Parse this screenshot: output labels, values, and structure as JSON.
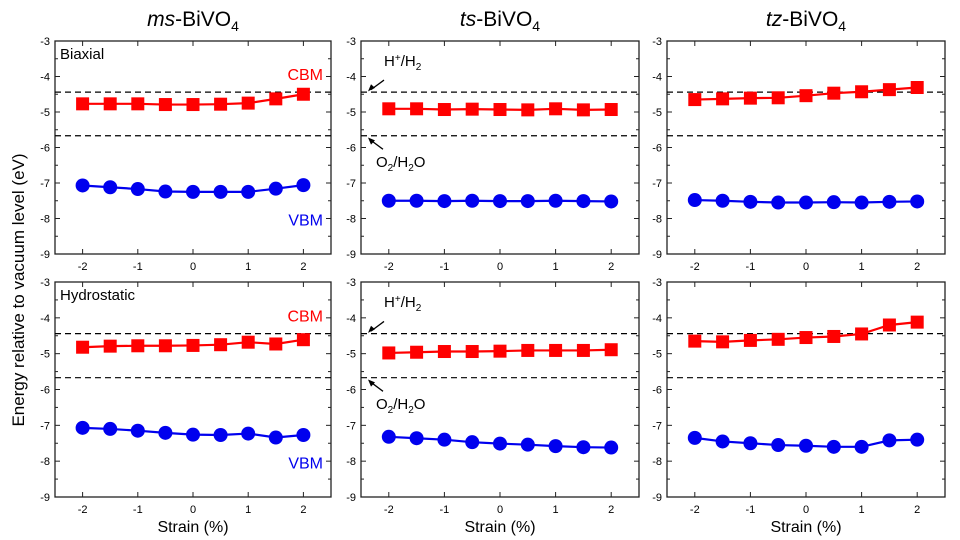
{
  "ylabel": "Energy relative to vacuum level (eV)",
  "colors": {
    "cbm": "#ff0000",
    "vbm": "#0000ee",
    "reference": "#000000"
  },
  "column_titles": [
    {
      "prefix": "ms",
      "base": "-BiVO",
      "sub": "4"
    },
    {
      "prefix": "ts",
      "base": "-BiVO",
      "sub": "4"
    },
    {
      "prefix": "tz",
      "base": "-BiVO",
      "sub": "4"
    }
  ],
  "row_labels": [
    "Biaxial",
    "Hydrostatic"
  ],
  "reference_labels": {
    "h": {
      "main": "H",
      "sup": "+",
      "rest": "/H",
      "sub": "2"
    },
    "o": {
      "main": "O",
      "sub1": "2",
      "rest": "/H",
      "sub2": "2",
      "end": "O"
    }
  },
  "chart_data": [
    {
      "type": "line",
      "panel": "ms-BiVO4 Biaxial",
      "xlabel": "",
      "ylabel": "Energy relative to vacuum level (eV)",
      "xlim": [
        -2.5,
        2.5
      ],
      "ylim": [
        -9,
        -3
      ],
      "xticks": [
        -2,
        -1,
        0,
        1,
        2
      ],
      "yticks": [
        -3,
        -4,
        -5,
        -6,
        -7,
        -8,
        -9
      ],
      "reference_lines": [
        -4.44,
        -5.67
      ],
      "x": [
        -2,
        -1.5,
        -1,
        -0.5,
        0,
        0.5,
        1,
        1.5,
        2
      ],
      "series": [
        {
          "name": "CBM",
          "marker": "square",
          "values": [
            -4.77,
            -4.77,
            -4.77,
            -4.79,
            -4.79,
            -4.78,
            -4.75,
            -4.63,
            -4.5
          ]
        },
        {
          "name": "VBM",
          "marker": "circle",
          "values": [
            -7.07,
            -7.12,
            -7.17,
            -7.24,
            -7.25,
            -7.25,
            -7.25,
            -7.16,
            -7.06
          ]
        }
      ]
    },
    {
      "type": "line",
      "panel": "ts-BiVO4 Biaxial",
      "xlabel": "",
      "xlim": [
        -2.5,
        2.5
      ],
      "ylim": [
        -9,
        -3
      ],
      "xticks": [
        -2,
        -1,
        0,
        1,
        2
      ],
      "yticks": [
        -3,
        -4,
        -5,
        -6,
        -7,
        -8,
        -9
      ],
      "reference_lines": [
        -4.44,
        -5.67
      ],
      "x": [
        -2,
        -1.5,
        -1,
        -0.5,
        0,
        0.5,
        1,
        1.5,
        2
      ],
      "series": [
        {
          "marker": "square",
          "values": [
            -4.91,
            -4.91,
            -4.93,
            -4.92,
            -4.93,
            -4.94,
            -4.91,
            -4.94,
            -4.93
          ]
        },
        {
          "marker": "circle",
          "values": [
            -7.5,
            -7.5,
            -7.51,
            -7.5,
            -7.51,
            -7.51,
            -7.5,
            -7.51,
            -7.52
          ]
        }
      ]
    },
    {
      "type": "line",
      "panel": "tz-BiVO4 Biaxial",
      "xlabel": "",
      "xlim": [
        -2.5,
        2.5
      ],
      "ylim": [
        -9,
        -3
      ],
      "xticks": [
        -2,
        -1,
        0,
        1,
        2
      ],
      "yticks": [
        -3,
        -4,
        -5,
        -6,
        -7,
        -8,
        -9
      ],
      "reference_lines": [
        -4.44,
        -5.67
      ],
      "x": [
        -2,
        -1.5,
        -1,
        -0.5,
        0,
        0.5,
        1,
        1.5,
        2
      ],
      "series": [
        {
          "marker": "square",
          "values": [
            -4.65,
            -4.63,
            -4.61,
            -4.6,
            -4.54,
            -4.47,
            -4.43,
            -4.37,
            -4.31
          ]
        },
        {
          "marker": "circle",
          "values": [
            -7.48,
            -7.5,
            -7.53,
            -7.55,
            -7.55,
            -7.54,
            -7.55,
            -7.53,
            -7.52
          ]
        }
      ]
    },
    {
      "type": "line",
      "panel": "ms-BiVO4 Hydrostatic",
      "xlabel": "Strain (%)",
      "xlim": [
        -2.5,
        2.5
      ],
      "ylim": [
        -9,
        -3
      ],
      "xticks": [
        -2,
        -1,
        0,
        1,
        2
      ],
      "yticks": [
        -3,
        -4,
        -5,
        -6,
        -7,
        -8,
        -9
      ],
      "reference_lines": [
        -4.44,
        -5.67
      ],
      "x": [
        -2,
        -1.5,
        -1,
        -0.5,
        0,
        0.5,
        1,
        1.5,
        2
      ],
      "series": [
        {
          "name": "CBM",
          "marker": "square",
          "values": [
            -4.82,
            -4.79,
            -4.78,
            -4.78,
            -4.77,
            -4.75,
            -4.68,
            -4.73,
            -4.61
          ]
        },
        {
          "name": "VBM",
          "marker": "circle",
          "values": [
            -7.07,
            -7.1,
            -7.15,
            -7.21,
            -7.26,
            -7.27,
            -7.23,
            -7.34,
            -7.27
          ]
        }
      ]
    },
    {
      "type": "line",
      "panel": "ts-BiVO4 Hydrostatic",
      "xlabel": "Strain (%)",
      "xlim": [
        -2.5,
        2.5
      ],
      "ylim": [
        -9,
        -3
      ],
      "xticks": [
        -2,
        -1,
        0,
        1,
        2
      ],
      "yticks": [
        -3,
        -4,
        -5,
        -6,
        -7,
        -8,
        -9
      ],
      "reference_lines": [
        -4.44,
        -5.67
      ],
      "x": [
        -2,
        -1.5,
        -1,
        -0.5,
        0,
        0.5,
        1,
        1.5,
        2
      ],
      "series": [
        {
          "marker": "square",
          "values": [
            -4.98,
            -4.96,
            -4.94,
            -4.94,
            -4.93,
            -4.91,
            -4.91,
            -4.91,
            -4.89
          ]
        },
        {
          "marker": "circle",
          "values": [
            -7.32,
            -7.36,
            -7.4,
            -7.47,
            -7.51,
            -7.54,
            -7.58,
            -7.61,
            -7.62
          ]
        }
      ]
    },
    {
      "type": "line",
      "panel": "tz-BiVO4 Hydrostatic",
      "xlabel": "Strain (%)",
      "xlim": [
        -2.5,
        2.5
      ],
      "ylim": [
        -9,
        -3
      ],
      "xticks": [
        -2,
        -1,
        0,
        1,
        2
      ],
      "yticks": [
        -3,
        -4,
        -5,
        -6,
        -7,
        -8,
        -9
      ],
      "reference_lines": [
        -4.44,
        -5.67
      ],
      "x": [
        -2,
        -1.5,
        -1,
        -0.5,
        0,
        0.5,
        1,
        1.5,
        2
      ],
      "series": [
        {
          "marker": "square",
          "values": [
            -4.65,
            -4.67,
            -4.63,
            -4.6,
            -4.55,
            -4.52,
            -4.45,
            -4.2,
            -4.12
          ]
        },
        {
          "marker": "circle",
          "values": [
            -7.35,
            -7.45,
            -7.5,
            -7.55,
            -7.57,
            -7.6,
            -7.6,
            -7.42,
            -7.4
          ]
        }
      ]
    }
  ]
}
